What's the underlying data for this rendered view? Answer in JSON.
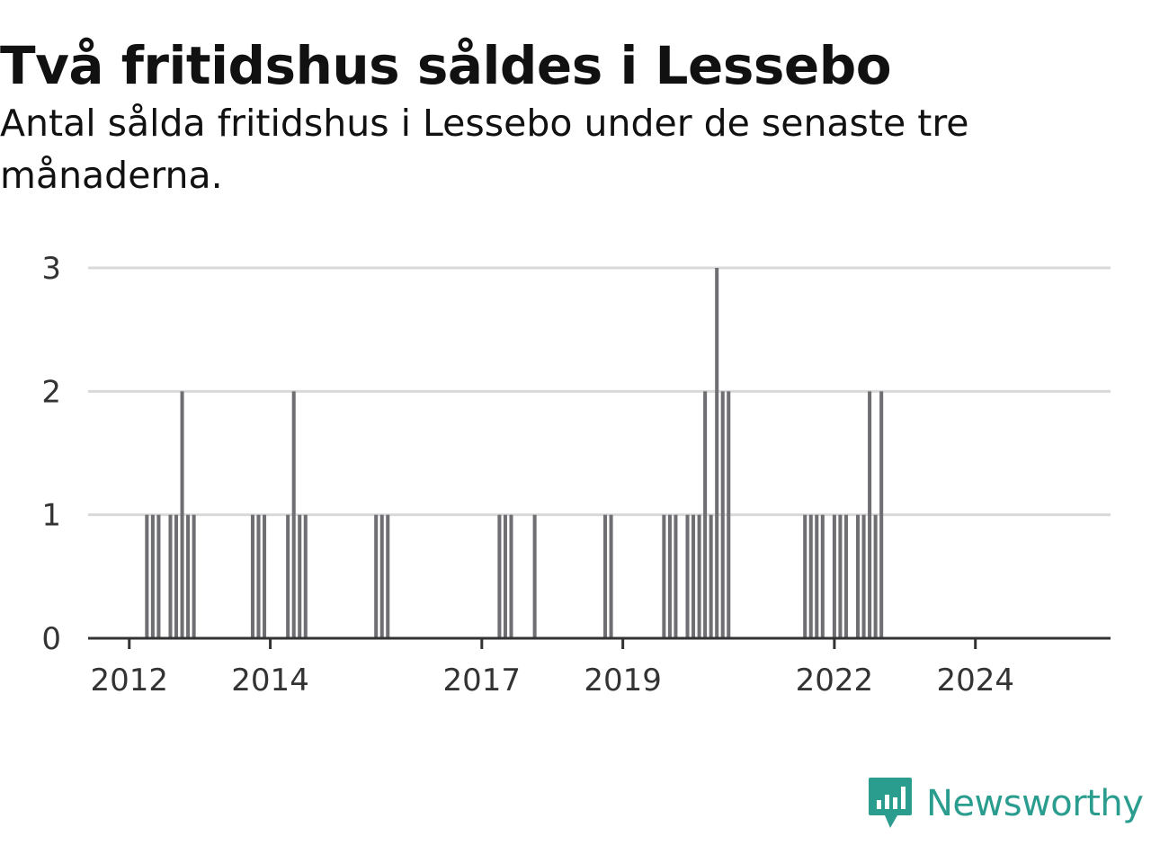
{
  "header": {
    "title": "Två fritidshus såldes i Lessebo",
    "subtitle": "Antal sålda fritidshus i Lessebo under de senaste tre månaderna."
  },
  "colors": {
    "bar": "#6e6e73",
    "highlight": "#1aa39a",
    "grid": "#d9d9d9",
    "axis": "#333333",
    "brand": "#2a9d8f"
  },
  "logo": {
    "text": "Newsworthy",
    "icon": "newsworthy-chart-bubble-icon"
  },
  "chart_data": {
    "type": "bar",
    "x_unit": "month",
    "xlim": [
      "2011-06",
      "2025-12"
    ],
    "ylim": [
      0,
      3
    ],
    "yticks": [
      "0",
      "1",
      "2",
      "3"
    ],
    "xticks": [
      "2012",
      "2014",
      "2017",
      "2019",
      "2022",
      "2024"
    ],
    "grid": true,
    "highlight_label": "2",
    "highlight_index": 47,
    "series": [
      {
        "x": [
          "2012-04",
          "2012-05",
          "2012-06",
          "2012-08",
          "2012-09",
          "2012-10",
          "2012-11",
          "2012-12",
          "2013-10",
          "2013-11",
          "2013-12",
          "2014-04",
          "2014-05",
          "2014-06",
          "2014-07",
          "2015-07",
          "2015-08",
          "2015-09",
          "2017-04",
          "2017-05",
          "2017-06",
          "2017-10",
          "2018-10",
          "2018-11",
          "2019-08",
          "2019-09",
          "2019-10",
          "2019-12",
          "2020-01",
          "2020-02",
          "2020-03",
          "2020-04",
          "2020-05",
          "2020-06",
          "2020-07",
          "2021-08",
          "2021-09",
          "2021-10",
          "2021-11",
          "2022-01",
          "2022-02",
          "2022-03",
          "2022-05",
          "2022-06",
          "2022-07",
          "2022-08",
          "2022-09"
        ],
        "values": [
          1,
          1,
          1,
          1,
          1,
          2,
          1,
          1,
          1,
          1,
          1,
          1,
          2,
          1,
          1,
          1,
          1,
          1,
          1,
          1,
          1,
          1,
          1,
          1,
          1,
          1,
          1,
          1,
          1,
          1,
          2,
          1,
          3,
          2,
          2,
          1,
          1,
          1,
          1,
          1,
          1,
          1,
          1,
          1,
          2,
          1,
          2
        ]
      }
    ]
  }
}
